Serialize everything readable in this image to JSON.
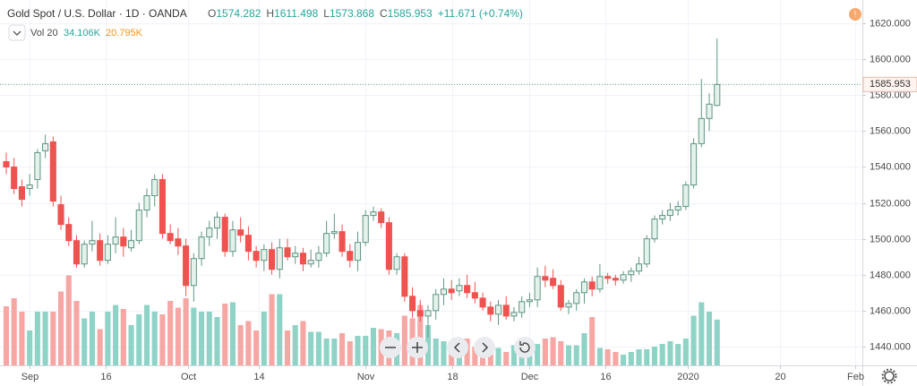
{
  "chart_data": {
    "type": "candlestick",
    "title": "Gold Spot / U.S. Dollar · 1D · OANDA",
    "ohlc_letters": [
      "O",
      "H",
      "L",
      "C"
    ],
    "change_text": "+11.671 (+0.74%)",
    "volume_legend": {
      "name": "Vol 20",
      "value": "34.106K",
      "ma": "20.795K"
    },
    "open": [
      1543,
      1540,
      1529,
      1528,
      1533,
      1549,
      1554,
      1519,
      1508,
      1499,
      1486,
      1497,
      1499,
      1488,
      1497,
      1501,
      1495,
      1499,
      1516,
      1524,
      1533,
      1503,
      1500,
      1496,
      1474,
      1489,
      1501,
      1506,
      1512,
      1493,
      1505,
      1502,
      1493,
      1488,
      1494,
      1483,
      1495,
      1490,
      1492,
      1486,
      1488,
      1492,
      1503,
      1504,
      1493,
      1488,
      1498,
      1513,
      1515,
      1509,
      1483,
      1490,
      1468,
      1460,
      1457,
      1460,
      1469,
      1472,
      1471,
      1474,
      1470,
      1467,
      1462,
      1458,
      1463,
      1457,
      1459,
      1465,
      1466,
      1479,
      1478,
      1474,
      1462,
      1464,
      1470,
      1476,
      1472,
      1479,
      1478,
      1477,
      1480,
      1482,
      1486,
      1500,
      1511,
      1513,
      1516,
      1518,
      1530,
      1553,
      1567,
      1574.282
    ],
    "high": [
      1548,
      1545,
      1533,
      1536,
      1550,
      1558,
      1557,
      1524,
      1512,
      1502,
      1499,
      1510,
      1503,
      1502,
      1512,
      1506,
      1505,
      1520,
      1528,
      1536,
      1536,
      1508,
      1506,
      1500,
      1492,
      1504,
      1510,
      1515,
      1514,
      1510,
      1512,
      1507,
      1496,
      1497,
      1498,
      1500,
      1500,
      1496,
      1495,
      1494,
      1496,
      1510,
      1514,
      1508,
      1497,
      1504,
      1516,
      1518,
      1517,
      1512,
      1492,
      1492,
      1473,
      1466,
      1463,
      1472,
      1478,
      1477,
      1478,
      1480,
      1476,
      1470,
      1465,
      1466,
      1468,
      1462,
      1468,
      1470,
      1484,
      1485,
      1483,
      1477,
      1466,
      1472,
      1478,
      1479,
      1486,
      1481,
      1480,
      1482,
      1484,
      1490,
      1502,
      1513,
      1516,
      1520,
      1521,
      1532,
      1556,
      1589,
      1581,
      1611.498
    ],
    "low": [
      1536,
      1525,
      1518,
      1524,
      1528,
      1545,
      1518,
      1505,
      1496,
      1484,
      1484,
      1493,
      1485,
      1486,
      1492,
      1490,
      1493,
      1497,
      1512,
      1518,
      1500,
      1497,
      1491,
      1468,
      1465,
      1485,
      1496,
      1500,
      1490,
      1490,
      1498,
      1488,
      1484,
      1482,
      1480,
      1478,
      1488,
      1486,
      1482,
      1484,
      1484,
      1490,
      1500,
      1490,
      1484,
      1482,
      1496,
      1510,
      1506,
      1480,
      1480,
      1465,
      1456,
      1454,
      1445,
      1455,
      1463,
      1466,
      1468,
      1467,
      1464,
      1460,
      1454,
      1452,
      1455,
      1454,
      1456,
      1462,
      1462,
      1473,
      1472,
      1460,
      1458,
      1460,
      1464,
      1468,
      1470,
      1475,
      1474,
      1475,
      1476,
      1480,
      1484,
      1498,
      1508,
      1510,
      1513,
      1516,
      1528,
      1551,
      1560,
      1573.868
    ],
    "close": [
      1540,
      1528,
      1522,
      1530,
      1548,
      1553,
      1521,
      1508,
      1499,
      1486,
      1497,
      1499,
      1488,
      1497,
      1501,
      1496,
      1499,
      1516,
      1524,
      1533,
      1503,
      1499,
      1496,
      1474,
      1489,
      1501,
      1506,
      1512,
      1493,
      1505,
      1502,
      1493,
      1488,
      1494,
      1483,
      1495,
      1490,
      1492,
      1486,
      1488,
      1492,
      1503,
      1504,
      1493,
      1488,
      1498,
      1513,
      1515,
      1509,
      1483,
      1490,
      1468,
      1460,
      1457,
      1460,
      1469,
      1472,
      1470,
      1474,
      1470,
      1467,
      1462,
      1458,
      1463,
      1457,
      1459,
      1465,
      1466,
      1479,
      1477,
      1474,
      1462,
      1464,
      1470,
      1476,
      1472,
      1479,
      1478,
      1477,
      1480,
      1482,
      1486,
      1500,
      1511,
      1513,
      1516,
      1518,
      1530,
      1553,
      1567,
      1575,
      1585.953
    ],
    "volume": [
      44,
      50,
      40,
      26,
      40,
      40,
      40,
      55,
      67,
      48,
      35,
      40,
      27,
      40,
      45,
      42,
      30,
      38,
      45,
      40,
      38,
      48,
      43,
      50,
      43,
      40,
      40,
      36,
      46,
      47,
      30,
      33,
      26,
      40,
      53,
      53,
      26,
      30,
      33,
      25,
      25,
      20,
      20,
      24,
      18,
      22,
      22,
      28,
      27,
      26,
      24,
      37,
      35,
      45,
      30,
      20,
      18,
      15,
      13,
      20,
      14,
      20,
      18,
      13,
      10,
      15,
      14,
      10,
      16,
      20,
      21,
      18,
      15,
      15,
      24,
      36,
      13,
      12,
      10,
      8,
      10,
      12,
      12,
      14,
      16,
      18,
      16,
      20,
      37,
      47,
      40,
      34.106
    ],
    "up_color": "#5f9584",
    "up_fill": "#e3f2ea",
    "down_color": "#ef5350",
    "volume_up_color": "#8fd3c7",
    "volume_down_color": "#f6a7a4",
    "ylim": [
      1429.5,
      1633
    ],
    "volume_ylim": [
      0,
      272
    ],
    "xlim": [
      -0.8,
      109.6
    ],
    "yticks": [
      {
        "value": 1440,
        "label": "1440.000"
      },
      {
        "value": 1460,
        "label": "1460.000"
      },
      {
        "value": 1480,
        "label": "1480.000"
      },
      {
        "value": 1500,
        "label": "1500.000"
      },
      {
        "value": 1520,
        "label": "1520.000"
      },
      {
        "value": 1540,
        "label": "1540.000"
      },
      {
        "value": 1560,
        "label": "1560.000"
      },
      {
        "value": 1580,
        "label": "1580.000"
      },
      {
        "value": 1600,
        "label": "1600.000"
      },
      {
        "value": 1620,
        "label": "1620.000"
      }
    ],
    "xticks": [
      {
        "value": 2.98,
        "label": "Sep"
      },
      {
        "value": 12.7,
        "label": "16"
      },
      {
        "value": 23.3,
        "label": "Oct"
      },
      {
        "value": 32.3,
        "label": "14"
      },
      {
        "value": 46.0,
        "label": "Nov"
      },
      {
        "value": 57.1,
        "label": "18"
      },
      {
        "value": 66.9,
        "label": "Dec"
      },
      {
        "value": 76.7,
        "label": "16"
      },
      {
        "value": 87.3,
        "label": "2020"
      },
      {
        "value": 99.0,
        "label": "20"
      },
      {
        "value": 108.7,
        "label": "Feb"
      }
    ],
    "grid": true
  }
}
